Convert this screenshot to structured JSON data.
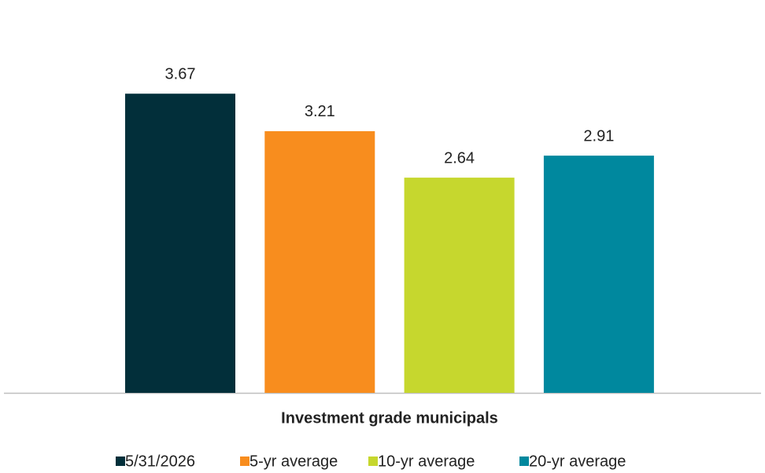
{
  "chart_data": {
    "type": "bar",
    "categories": [
      "Investment grade municipals"
    ],
    "series": [
      {
        "name": "5/31/2026",
        "color": "#022f3a",
        "values": [
          3.67
        ]
      },
      {
        "name": "5-yr average",
        "color": "#f88d1e",
        "values": [
          3.21
        ]
      },
      {
        "name": "10-yr average",
        "color": "#c6d72e",
        "values": [
          2.64
        ]
      },
      {
        "name": "20-yr average",
        "color": "#00889e",
        "values": [
          2.91
        ]
      }
    ],
    "ylim": [
      0,
      4
    ]
  }
}
